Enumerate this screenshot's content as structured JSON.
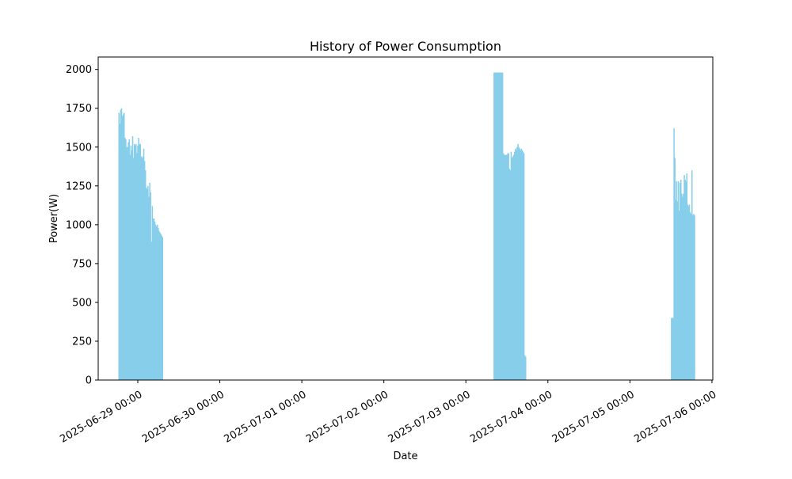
{
  "chart_data": {
    "type": "bar",
    "title": "History of Power Consumption",
    "xlabel": "Date",
    "ylabel": "Power(W)",
    "ylim": [
      0,
      2080
    ],
    "xlim": [
      "2025-06-28 12:25",
      "2025-07-06 00:15"
    ],
    "grid": false,
    "bar_color": "#87CEEB",
    "x_ticks": [
      "2025-06-29 00:00",
      "2025-06-30 00:00",
      "2025-07-01 00:00",
      "2025-07-02 00:00",
      "2025-07-03 00:00",
      "2025-07-04 00:00",
      "2025-07-05 00:00",
      "2025-07-06 00:00"
    ],
    "y_ticks": [
      0,
      250,
      500,
      750,
      1000,
      1250,
      1500,
      1750,
      2000
    ],
    "bar_width_hours": 0.35,
    "series": [
      {
        "x": [
          "2025-06-28 18:30",
          "2025-06-28 18:45",
          "2025-06-28 19:00",
          "2025-06-28 19:15",
          "2025-06-28 19:30",
          "2025-06-28 19:45",
          "2025-06-28 20:00",
          "2025-06-28 20:15",
          "2025-06-28 20:30",
          "2025-06-28 20:45",
          "2025-06-28 21:00",
          "2025-06-28 21:15",
          "2025-06-28 21:30",
          "2025-06-28 21:45",
          "2025-06-28 22:00",
          "2025-06-28 22:15",
          "2025-06-28 22:30",
          "2025-06-28 22:45",
          "2025-06-28 23:00",
          "2025-06-28 23:15",
          "2025-06-28 23:30",
          "2025-06-28 23:45",
          "2025-06-29 00:00",
          "2025-06-29 00:15",
          "2025-06-29 00:30",
          "2025-06-29 00:45",
          "2025-06-29 01:00",
          "2025-06-29 01:15",
          "2025-06-29 01:30",
          "2025-06-29 01:45",
          "2025-06-29 02:00",
          "2025-06-29 02:15",
          "2025-06-29 02:30",
          "2025-06-29 02:45",
          "2025-06-29 03:00",
          "2025-06-29 03:15",
          "2025-06-29 03:30",
          "2025-06-29 03:45",
          "2025-06-29 04:00",
          "2025-06-29 04:15",
          "2025-06-29 04:30",
          "2025-06-29 04:45",
          "2025-06-29 05:00",
          "2025-06-29 05:15",
          "2025-06-29 05:30",
          "2025-06-29 05:45",
          "2025-06-29 06:00",
          "2025-06-29 06:15",
          "2025-06-29 06:30",
          "2025-06-29 06:45",
          "2025-06-29 07:00",
          "2025-06-29 07:15"
        ],
        "values": [
          1720,
          1650,
          1740,
          1750,
          1700,
          1710,
          1720,
          1560,
          1550,
          1500,
          1500,
          1530,
          1550,
          1450,
          1510,
          1480,
          1570,
          1430,
          1520,
          1510,
          1520,
          1460,
          1510,
          1560,
          1520,
          1520,
          1440,
          1430,
          1440,
          1490,
          1410,
          1350,
          1240,
          1230,
          1250,
          1180,
          1270,
          1210,
          890,
          1120,
          1040,
          1040,
          1020,
          1000,
          990,
          1000,
          980,
          960,
          950,
          940,
          930,
          920
        ]
      },
      {
        "x": [
          "2025-07-03 08:15",
          "2025-07-03 08:30",
          "2025-07-03 08:45",
          "2025-07-03 09:00",
          "2025-07-03 09:15",
          "2025-07-03 09:30",
          "2025-07-03 09:45",
          "2025-07-03 10:00",
          "2025-07-03 10:15",
          "2025-07-03 10:30",
          "2025-07-03 10:45",
          "2025-07-03 11:00",
          "2025-07-03 11:15",
          "2025-07-03 11:30",
          "2025-07-03 11:45",
          "2025-07-03 12:00",
          "2025-07-03 12:15",
          "2025-07-03 12:30",
          "2025-07-03 12:45",
          "2025-07-03 13:00",
          "2025-07-03 13:15",
          "2025-07-03 13:30",
          "2025-07-03 13:45",
          "2025-07-03 14:00",
          "2025-07-03 14:15",
          "2025-07-03 14:30",
          "2025-07-03 14:45",
          "2025-07-03 15:00",
          "2025-07-03 15:15",
          "2025-07-03 15:30",
          "2025-07-03 15:45",
          "2025-07-03 16:00",
          "2025-07-03 16:15",
          "2025-07-03 16:30",
          "2025-07-03 16:45",
          "2025-07-03 17:00",
          "2025-07-03 17:15",
          "2025-07-03 17:30"
        ],
        "values": [
          1980,
          1980,
          1980,
          1980,
          1980,
          1980,
          1980,
          1980,
          1980,
          1980,
          1980,
          1460,
          1450,
          1450,
          1450,
          1450,
          1460,
          1460,
          1360,
          1350,
          1470,
          1430,
          1440,
          1450,
          1470,
          1490,
          1480,
          1500,
          1520,
          1500,
          1490,
          1480,
          1490,
          1480,
          1470,
          1460,
          160,
          150
        ]
      },
      {
        "x": [
          "2025-07-05 12:10",
          "2025-07-05 12:25",
          "2025-07-05 12:40",
          "2025-07-05 12:55",
          "2025-07-05 13:10",
          "2025-07-05 13:25",
          "2025-07-05 13:40",
          "2025-07-05 13:55",
          "2025-07-05 14:10",
          "2025-07-05 14:25",
          "2025-07-05 14:40",
          "2025-07-05 14:55",
          "2025-07-05 15:10",
          "2025-07-05 15:25",
          "2025-07-05 15:40",
          "2025-07-05 15:55",
          "2025-07-05 16:10",
          "2025-07-05 16:25",
          "2025-07-05 16:40",
          "2025-07-05 16:55",
          "2025-07-05 17:10",
          "2025-07-05 17:25",
          "2025-07-05 17:40",
          "2025-07-05 17:55",
          "2025-07-05 18:10",
          "2025-07-05 18:25",
          "2025-07-05 18:40",
          "2025-07-05 18:55"
        ],
        "values": [
          400,
          400,
          400,
          1620,
          1430,
          1160,
          1280,
          1150,
          1280,
          1090,
          1270,
          1290,
          1200,
          1180,
          1200,
          1320,
          1290,
          1280,
          1330,
          1130,
          1120,
          1130,
          1080,
          1070,
          1350,
          1060,
          1070,
          1060
        ]
      }
    ]
  }
}
